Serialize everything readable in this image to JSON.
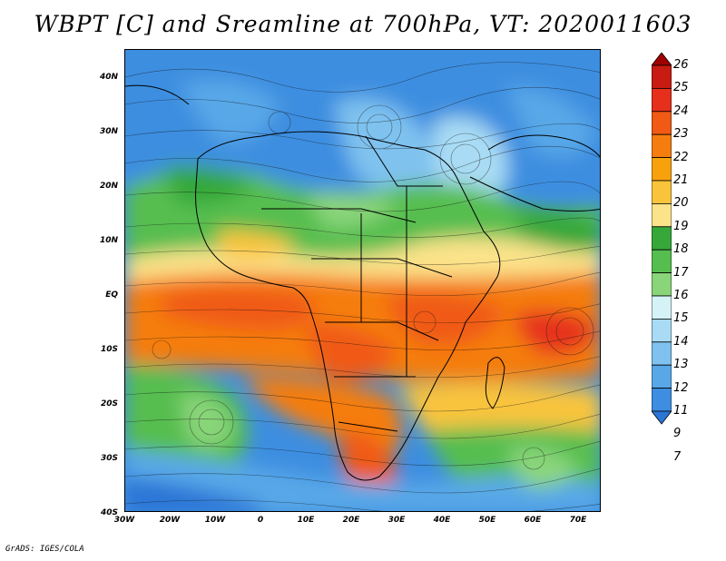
{
  "title": "WBPT [C] and Sreamline at 700hPa, VT: 2020011603",
  "credit": "GrADS: IGES/COLA",
  "lat_ticks": [
    "40N",
    "30N",
    "20N",
    "10N",
    "EQ",
    "10S",
    "20S",
    "30S",
    "40S"
  ],
  "lon_ticks": [
    "30W",
    "20W",
    "10W",
    "0",
    "10E",
    "20E",
    "30E",
    "40E",
    "50E",
    "60E",
    "70E"
  ],
  "colorbar": {
    "labels": [
      "26",
      "25",
      "24",
      "23",
      "22",
      "21",
      "20",
      "19",
      "18",
      "17",
      "16",
      "15",
      "14",
      "13",
      "12",
      "11",
      "9",
      "7"
    ],
    "colors": [
      "#a00000",
      "#c81b12",
      "#e6301c",
      "#f05a14",
      "#f57d0f",
      "#f7a20d",
      "#f9c43c",
      "#fbe38a",
      "#36a83a",
      "#56be4f",
      "#8ad57a",
      "#d5f2f7",
      "#a9dcf4",
      "#7fc2ef",
      "#58a8e8",
      "#3d8ee0",
      "#2a75d6"
    ]
  },
  "map": {
    "variable": "Wet-bulb potential temperature",
    "units": "C",
    "level": "700hPa",
    "overlay": "streamlines",
    "lon_range": [
      -30,
      75
    ],
    "lat_range": [
      -40,
      45
    ]
  }
}
